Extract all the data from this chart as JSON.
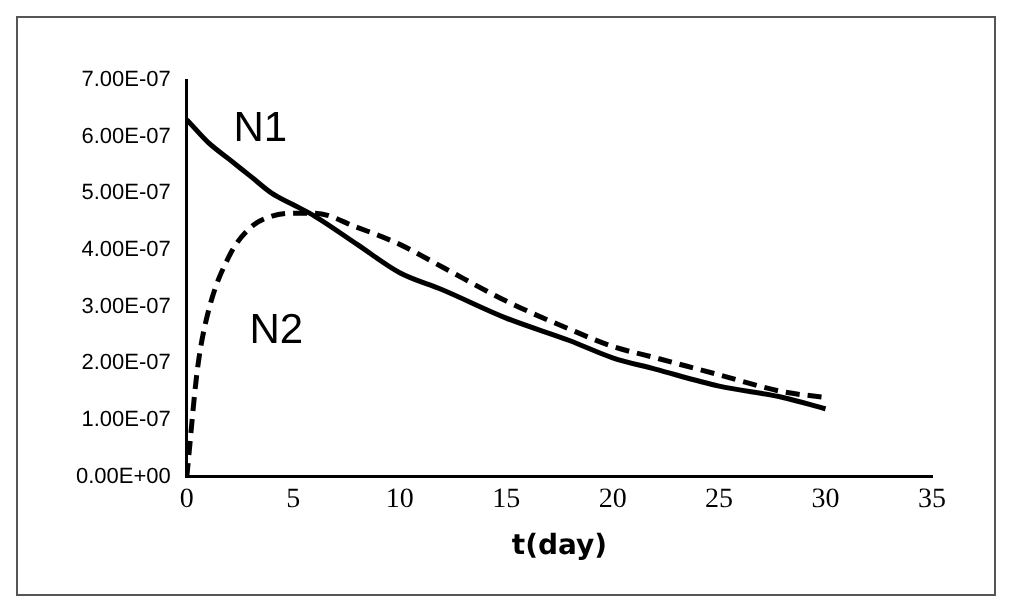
{
  "chart_data": {
    "type": "line",
    "xlabel": "t(day)",
    "x": [
      0,
      1,
      2,
      3,
      4,
      5,
      6,
      8,
      10,
      12,
      15,
      18,
      20,
      22,
      25,
      28,
      30
    ],
    "series": [
      {
        "name": "N1",
        "color": "#000000",
        "line_style": "solid",
        "values": [
          6.3e-07,
          5.9e-07,
          5.6e-07,
          5.3e-07,
          5e-07,
          4.8e-07,
          4.6e-07,
          4.1e-07,
          3.6e-07,
          3.3e-07,
          2.8e-07,
          2.4e-07,
          2.1e-07,
          1.9e-07,
          1.6e-07,
          1.4e-07,
          1.2e-07
        ]
      },
      {
        "name": "N2",
        "color": "#000000",
        "line_style": "dashed",
        "x": [
          0,
          0.5,
          1,
          2,
          3,
          4,
          5,
          6,
          8,
          10,
          12,
          15,
          18,
          20,
          22,
          25,
          28,
          30
        ],
        "values": [
          0,
          1.9e-07,
          2.9e-07,
          3.9e-07,
          4.4e-07,
          4.6e-07,
          4.65e-07,
          4.65e-07,
          4.4e-07,
          4.1e-07,
          3.7e-07,
          3.1e-07,
          2.6e-07,
          2.3e-07,
          2.1e-07,
          1.8e-07,
          1.5e-07,
          1.4e-07
        ]
      }
    ],
    "xlim": [
      0,
      35
    ],
    "xticks": [
      0,
      5,
      10,
      15,
      20,
      25,
      30,
      35
    ],
    "ylim": [
      0,
      7e-07
    ],
    "yticks": [
      {
        "value": 0,
        "label": "0.00E+00"
      },
      {
        "value": 1e-07,
        "label": "1.00E-07"
      },
      {
        "value": 2e-07,
        "label": "2.00E-07"
      },
      {
        "value": 3e-07,
        "label": "3.00E-07"
      },
      {
        "value": 4e-07,
        "label": "4.00E-07"
      },
      {
        "value": 5e-07,
        "label": "5.00E-07"
      },
      {
        "value": 6e-07,
        "label": "6.00E-07"
      },
      {
        "value": 7e-07,
        "label": "7.00E-07"
      }
    ],
    "grid": false,
    "legend": false,
    "marker": "none"
  }
}
